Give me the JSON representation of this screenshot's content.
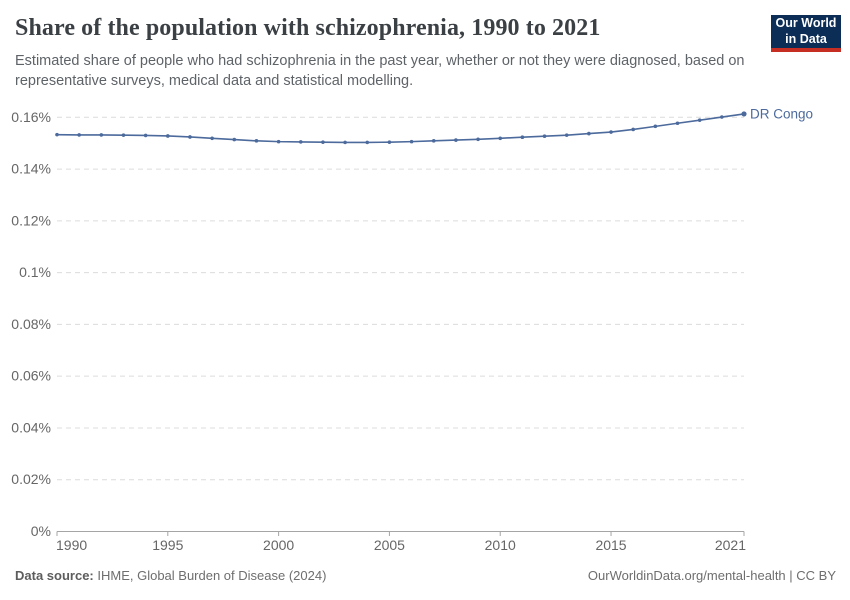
{
  "header": {
    "title": "Share of the population with schizophrenia, 1990 to 2021",
    "subtitle": "Estimated share of people who had schizophrenia in the past year, whether or not they were diagnosed, based on representative surveys, medical data and statistical modelling.",
    "logo": {
      "line1": "Our World",
      "line2": "in Data"
    }
  },
  "chart_data": {
    "type": "line",
    "title": "Share of the population with schizophrenia, 1990 to 2021",
    "unit": "%",
    "xlabel": "",
    "ylabel": "",
    "xlim": [
      1990,
      2021
    ],
    "ylim": [
      0,
      0.16
    ],
    "grid": true,
    "legend_position": "end-of-line",
    "x": [
      1990,
      1991,
      1992,
      1993,
      1994,
      1995,
      1996,
      1997,
      1998,
      1999,
      2000,
      2001,
      2002,
      2003,
      2004,
      2005,
      2006,
      2007,
      2008,
      2009,
      2010,
      2011,
      2012,
      2013,
      2014,
      2015,
      2016,
      2017,
      2018,
      2019,
      2020,
      2021
    ],
    "series": [
      {
        "name": "DR Congo",
        "color": "#4c6a9c",
        "values": [
          0.1533,
          0.1532,
          0.1532,
          0.1531,
          0.153,
          0.1528,
          0.1524,
          0.1519,
          0.1514,
          0.1509,
          0.1506,
          0.1505,
          0.1504,
          0.1503,
          0.1503,
          0.1504,
          0.1506,
          0.1509,
          0.1512,
          0.1515,
          0.1519,
          0.1523,
          0.1527,
          0.1531,
          0.1537,
          0.1543,
          0.1553,
          0.1565,
          0.1577,
          0.1589,
          0.1601,
          0.1613
        ]
      }
    ],
    "x_ticks": [
      {
        "value": 1990,
        "label": "1990"
      },
      {
        "value": 1995,
        "label": "1995"
      },
      {
        "value": 2000,
        "label": "2000"
      },
      {
        "value": 2005,
        "label": "2005"
      },
      {
        "value": 2010,
        "label": "2010"
      },
      {
        "value": 2015,
        "label": "2015"
      },
      {
        "value": 2021,
        "label": "2021"
      }
    ],
    "y_ticks": [
      {
        "value": 0,
        "label": "0%"
      },
      {
        "value": 0.02,
        "label": "0.02%"
      },
      {
        "value": 0.04,
        "label": "0.04%"
      },
      {
        "value": 0.06,
        "label": "0.06%"
      },
      {
        "value": 0.08,
        "label": "0.08%"
      },
      {
        "value": 0.1,
        "label": "0.1%"
      },
      {
        "value": 0.12,
        "label": "0.12%"
      },
      {
        "value": 0.14,
        "label": "0.14%"
      },
      {
        "value": 0.16,
        "label": "0.16%"
      }
    ]
  },
  "footer": {
    "source_label": "Data source:",
    "source_text": " IHME, Global Burden of Disease (2024)",
    "credit": "OurWorldinData.org/mental-health | CC BY"
  },
  "colors": {
    "line": "#4c6a9c",
    "grid": "#dcdcdc",
    "axis": "#a5a5a5",
    "tick_label": "#666666",
    "title": "#3b4045",
    "logo_bg": "#0c2d56",
    "logo_accent": "#c62d23"
  }
}
